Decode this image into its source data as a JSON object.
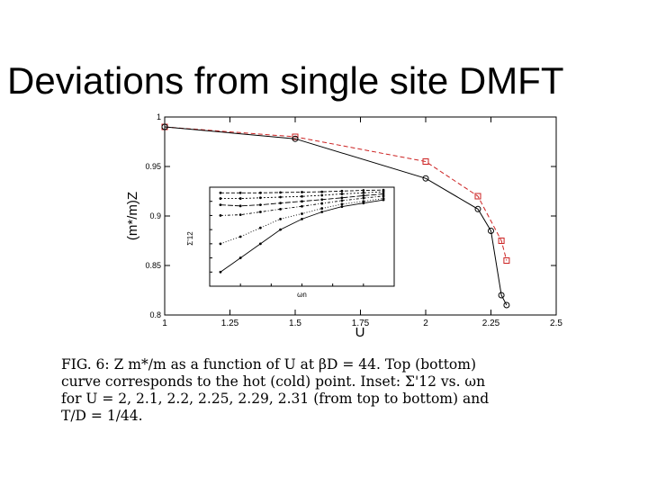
{
  "slide": {
    "title": "Deviations from single site DMFT"
  },
  "caption": {
    "lines": [
      "FIG. 6: Z m*/m as a function of U at βD = 44. Top (bottom)",
      "curve corresponds to the hot (cold) point. Inset: Σ'12 vs. ωn",
      "for U = 2, 2.1, 2.2, 2.25, 2.29, 2.31 (from top to bottom) and",
      "T/D = 1/44."
    ]
  },
  "chart_data": [
    {
      "type": "line",
      "xlabel": "U",
      "ylabel": "(m*/m)Z",
      "xlim": [
        1,
        2.5
      ],
      "ylim": [
        0.8,
        1.0
      ],
      "xticks": [
        "1",
        "1.25",
        "1.5",
        "1.75",
        "2",
        "2.25",
        "2.5"
      ],
      "yticks": [
        "0.8",
        "0.85",
        "0.9",
        "0.95",
        "1"
      ],
      "series": [
        {
          "color": "#cc2222",
          "marker": "square",
          "linestyle": "dashed",
          "x": [
            1.0,
            1.5,
            2.0,
            2.2,
            2.29,
            2.31
          ],
          "y": [
            0.99,
            0.98,
            0.955,
            0.92,
            0.875,
            0.855
          ]
        },
        {
          "color": "#000000",
          "marker": "circle",
          "linestyle": "solid",
          "x": [
            1.0,
            1.5,
            2.0,
            2.2,
            2.25,
            2.29,
            2.31
          ],
          "y": [
            0.99,
            0.978,
            0.938,
            0.907,
            0.885,
            0.82,
            0.81
          ]
        }
      ]
    },
    {
      "type": "line",
      "xlabel": "ωn",
      "ylabel": "Σ'12",
      "xlim": [
        0,
        1.2
      ],
      "ylim": [
        -0.28,
        0
      ],
      "series": [
        {
          "x": [
            0.07,
            0.2,
            0.33,
            0.46,
            0.6,
            0.73,
            0.86,
            1.0,
            1.13
          ],
          "y": [
            -0.016,
            -0.016,
            -0.016,
            -0.015,
            -0.014,
            -0.013,
            -0.011,
            -0.009,
            -0.008
          ]
        },
        {
          "x": [
            0.07,
            0.2,
            0.33,
            0.46,
            0.6,
            0.73,
            0.86,
            1.0,
            1.13
          ],
          "y": [
            -0.032,
            -0.032,
            -0.03,
            -0.028,
            -0.026,
            -0.023,
            -0.019,
            -0.016,
            -0.013
          ]
        },
        {
          "x": [
            0.07,
            0.2,
            0.33,
            0.46,
            0.6,
            0.73,
            0.86,
            1.0,
            1.13
          ],
          "y": [
            -0.05,
            -0.053,
            -0.05,
            -0.045,
            -0.04,
            -0.035,
            -0.03,
            -0.024,
            -0.019
          ]
        },
        {
          "x": [
            0.07,
            0.2,
            0.33,
            0.46,
            0.6,
            0.73,
            0.86,
            1.0,
            1.13
          ],
          "y": [
            -0.08,
            -0.078,
            -0.07,
            -0.062,
            -0.054,
            -0.046,
            -0.038,
            -0.031,
            -0.025
          ]
        },
        {
          "x": [
            0.07,
            0.2,
            0.33,
            0.46,
            0.6,
            0.73,
            0.86,
            1.0,
            1.13
          ],
          "y": [
            -0.16,
            -0.14,
            -0.115,
            -0.09,
            -0.075,
            -0.06,
            -0.048,
            -0.04,
            -0.032
          ]
        },
        {
          "x": [
            0.07,
            0.2,
            0.33,
            0.46,
            0.6,
            0.73,
            0.86,
            1.0,
            1.13
          ],
          "y": [
            -0.24,
            -0.2,
            -0.16,
            -0.12,
            -0.09,
            -0.07,
            -0.055,
            -0.045,
            -0.036
          ]
        }
      ]
    }
  ]
}
